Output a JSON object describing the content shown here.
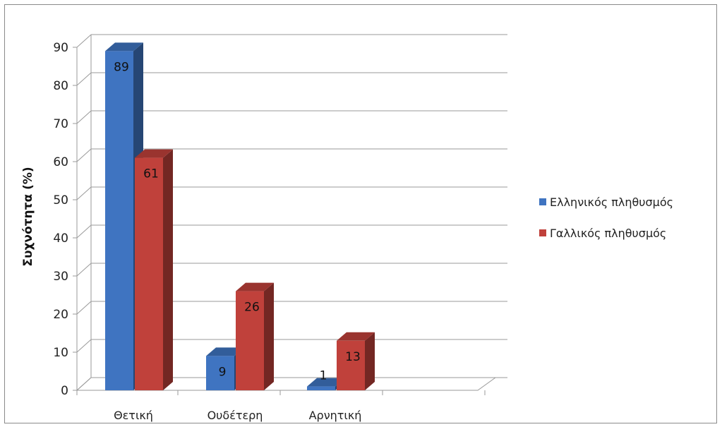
{
  "chart_data": {
    "type": "bar",
    "categories": [
      "Θετική",
      "Ουδέτερη",
      "Αρνητική"
    ],
    "series": [
      {
        "name": "Ελληνικός πληθυσμός",
        "values": [
          89,
          9,
          1
        ],
        "color": "#3f74c1"
      },
      {
        "name": "Γαλλικός πληθυσμός",
        "values": [
          61,
          26,
          13
        ],
        "color": "#c0413b"
      }
    ],
    "title": "",
    "xlabel": "",
    "ylabel": "Συχνότητα (%)",
    "ylim": [
      0,
      90
    ],
    "yticks": [
      0,
      10,
      20,
      30,
      40,
      50,
      60,
      70,
      80,
      90
    ],
    "grid": true,
    "legend_position": "right",
    "style": "3d-clustered-column"
  }
}
